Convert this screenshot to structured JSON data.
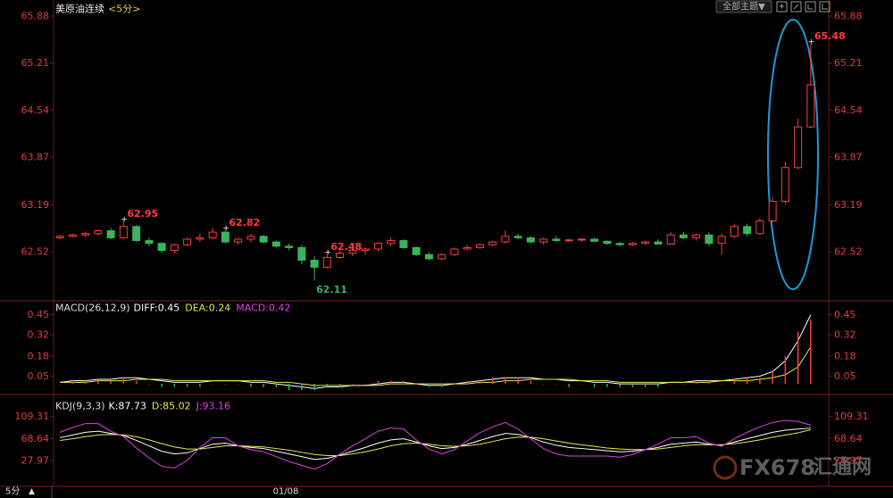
{
  "header": {
    "title": "美原油连续",
    "period": "<5分>",
    "theme_button": "全部主题▼"
  },
  "chart_data": [
    {
      "type": "candlestick",
      "open": [
        62.72,
        62.74,
        62.76,
        62.78,
        62.82,
        62.72,
        62.88,
        62.68,
        62.64,
        62.54,
        62.62,
        62.7,
        62.72,
        62.8,
        62.66,
        62.7,
        62.74,
        62.66,
        62.6,
        62.58,
        62.4,
        62.3,
        62.44,
        62.5,
        62.54,
        62.56,
        62.64,
        62.68,
        62.58,
        62.48,
        62.42,
        62.48,
        62.56,
        62.58,
        62.62,
        62.66,
        62.74,
        62.72,
        62.66,
        62.7,
        62.68,
        62.69,
        62.7,
        62.67,
        62.64,
        62.62,
        62.64,
        62.66,
        62.63,
        62.76,
        62.72,
        62.76,
        62.64,
        62.74,
        62.88,
        62.78,
        62.96,
        63.24,
        63.72,
        64.3
      ],
      "high": [
        62.76,
        62.78,
        62.8,
        62.84,
        62.86,
        62.95,
        62.9,
        62.72,
        62.66,
        62.64,
        62.72,
        62.78,
        62.86,
        62.82,
        62.72,
        62.78,
        62.76,
        62.68,
        62.64,
        62.62,
        62.46,
        62.48,
        62.54,
        62.58,
        62.58,
        62.66,
        62.72,
        62.7,
        62.6,
        62.52,
        62.5,
        62.58,
        62.62,
        62.64,
        62.68,
        62.82,
        62.78,
        62.74,
        62.72,
        62.74,
        62.7,
        62.71,
        62.72,
        62.68,
        62.66,
        62.66,
        62.68,
        62.7,
        62.8,
        62.8,
        62.78,
        62.8,
        62.78,
        62.92,
        62.92,
        63.0,
        63.3,
        63.8,
        64.42,
        65.48
      ],
      "low": [
        62.7,
        62.72,
        62.73,
        62.75,
        62.7,
        62.7,
        62.66,
        62.6,
        62.5,
        62.5,
        62.6,
        62.66,
        62.7,
        62.64,
        62.62,
        62.66,
        62.64,
        62.58,
        62.54,
        62.34,
        62.11,
        62.28,
        62.42,
        62.46,
        62.48,
        62.52,
        62.6,
        62.56,
        62.46,
        62.4,
        62.4,
        62.46,
        62.54,
        62.56,
        62.6,
        62.64,
        62.7,
        62.64,
        62.62,
        62.66,
        62.66,
        62.66,
        62.66,
        62.62,
        62.6,
        62.6,
        62.62,
        62.62,
        62.62,
        62.7,
        62.68,
        62.6,
        62.48,
        62.72,
        62.74,
        62.76,
        62.94,
        63.2,
        63.7,
        64.28
      ],
      "close": [
        62.74,
        62.76,
        62.78,
        62.82,
        62.72,
        62.88,
        62.68,
        62.64,
        62.54,
        62.62,
        62.7,
        62.72,
        62.8,
        62.66,
        62.7,
        62.74,
        62.66,
        62.6,
        62.58,
        62.4,
        62.3,
        62.44,
        62.5,
        62.54,
        62.56,
        62.64,
        62.68,
        62.58,
        62.48,
        62.42,
        62.48,
        62.56,
        62.58,
        62.62,
        62.66,
        62.74,
        62.72,
        62.66,
        62.7,
        62.68,
        62.69,
        62.7,
        62.67,
        62.64,
        62.62,
        62.64,
        62.66,
        62.63,
        62.76,
        62.72,
        62.76,
        62.64,
        62.74,
        62.88,
        62.78,
        62.96,
        63.24,
        63.72,
        64.3,
        64.9
      ],
      "up_color": "#ff3c3c",
      "down_color": "#3cb45a",
      "annotations": [
        62.95,
        62.11,
        62.82,
        62.48,
        65.48
      ],
      "ylim": [
        62.0,
        66.0
      ],
      "yticks": [
        65.88,
        65.21,
        64.54,
        63.87,
        63.19,
        62.52
      ]
    },
    {
      "type": "macd",
      "title": "MACD(26,12,9)",
      "series": [
        {
          "name": "DIFF:0.45",
          "color": "#ffffff",
          "values": [
            0.01,
            0.02,
            0.02,
            0.03,
            0.03,
            0.04,
            0.04,
            0.03,
            0.02,
            0.01,
            0.01,
            0.01,
            0.02,
            0.02,
            0.02,
            0.01,
            0.01,
            0.0,
            -0.01,
            -0.02,
            -0.03,
            -0.02,
            -0.02,
            -0.01,
            -0.01,
            0.0,
            0.01,
            0.01,
            0.0,
            -0.01,
            -0.01,
            0.0,
            0.01,
            0.02,
            0.03,
            0.04,
            0.04,
            0.04,
            0.03,
            0.03,
            0.02,
            0.02,
            0.01,
            0.01,
            0.0,
            0.0,
            0.0,
            0.0,
            0.01,
            0.01,
            0.02,
            0.02,
            0.02,
            0.03,
            0.04,
            0.05,
            0.08,
            0.15,
            0.28,
            0.45
          ]
        },
        {
          "name": "DEA:0.24",
          "color": "#e8e84a",
          "values": [
            0.01,
            0.01,
            0.01,
            0.02,
            0.02,
            0.02,
            0.03,
            0.03,
            0.03,
            0.02,
            0.02,
            0.02,
            0.02,
            0.02,
            0.02,
            0.02,
            0.02,
            0.01,
            0.01,
            0.0,
            -0.01,
            -0.01,
            -0.01,
            -0.01,
            -0.01,
            -0.01,
            0.0,
            0.0,
            0.0,
            0.0,
            0.0,
            0.0,
            0.0,
            0.01,
            0.01,
            0.02,
            0.02,
            0.03,
            0.03,
            0.03,
            0.03,
            0.02,
            0.02,
            0.02,
            0.01,
            0.01,
            0.01,
            0.01,
            0.01,
            0.01,
            0.01,
            0.01,
            0.02,
            0.02,
            0.02,
            0.03,
            0.04,
            0.06,
            0.11,
            0.24
          ]
        },
        {
          "name": "MACD:0.42",
          "color": "#e040e0",
          "style": "bar",
          "up_color": "#ff3c3c",
          "down_color": "#3cb45a",
          "values": [
            0,
            0.02,
            0.02,
            0.02,
            0.02,
            0.04,
            0.02,
            0,
            -0.02,
            -0.02,
            -0.02,
            -0.02,
            0,
            0,
            0,
            -0.02,
            -0.02,
            -0.02,
            -0.04,
            -0.04,
            -0.04,
            -0.02,
            -0.02,
            0,
            0,
            0.02,
            0.02,
            0.02,
            0,
            -0.02,
            -0.02,
            0,
            0.02,
            0.02,
            0.04,
            0.04,
            0.04,
            0.02,
            0,
            0,
            -0.02,
            0,
            -0.02,
            -0.02,
            -0.02,
            -0.02,
            -0.02,
            -0.02,
            0,
            0,
            0.02,
            0.02,
            0,
            0.02,
            0.04,
            0.04,
            0.08,
            0.18,
            0.34,
            0.42
          ]
        }
      ],
      "ylim": [
        -0.04,
        0.5
      ],
      "yticks": [
        0.45,
        0.32,
        0.18,
        0.05
      ]
    },
    {
      "type": "kdj",
      "title": "KDJ(9,3,3)",
      "series": [
        {
          "name": "K:87.73",
          "color": "#ffffff",
          "values": [
            70,
            75,
            80,
            82,
            78,
            74,
            65,
            55,
            45,
            40,
            42,
            50,
            58,
            60,
            55,
            52,
            50,
            45,
            40,
            35,
            30,
            32,
            38,
            45,
            52,
            60,
            66,
            68,
            62,
            55,
            50,
            52,
            58,
            65,
            72,
            78,
            76,
            70,
            62,
            56,
            52,
            50,
            48,
            46,
            44,
            45,
            48,
            52,
            58,
            60,
            62,
            58,
            56,
            62,
            68,
            74,
            80,
            84,
            86,
            87.73
          ]
        },
        {
          "name": "D:85.02",
          "color": "#e8e84a",
          "values": [
            65,
            68,
            72,
            75,
            76,
            75,
            72,
            66,
            59,
            53,
            49,
            49,
            52,
            55,
            55,
            54,
            53,
            50,
            47,
            43,
            39,
            37,
            37,
            40,
            44,
            49,
            55,
            59,
            60,
            58,
            55,
            54,
            55,
            58,
            63,
            68,
            71,
            71,
            68,
            64,
            60,
            57,
            54,
            51,
            49,
            48,
            48,
            49,
            52,
            55,
            57,
            57,
            57,
            59,
            62,
            66,
            71,
            75,
            79,
            85.02
          ]
        },
        {
          "name": "J:93.16",
          "color": "#e040e0",
          "values": [
            80,
            89,
            96,
            96,
            82,
            72,
            51,
            33,
            17,
            14,
            28,
            52,
            70,
            70,
            55,
            48,
            44,
            35,
            26,
            19,
            12,
            22,
            40,
            55,
            68,
            82,
            88,
            86,
            66,
            49,
            40,
            48,
            64,
            79,
            90,
            98,
            86,
            68,
            50,
            40,
            36,
            36,
            36,
            36,
            34,
            39,
            48,
            58,
            70,
            70,
            72,
            60,
            54,
            68,
            80,
            90,
            98,
            102,
            100,
            93.16
          ]
        }
      ],
      "ylim": [
        -20,
        140
      ],
      "yticks": [
        109.31,
        68.64,
        27.97
      ]
    }
  ],
  "footer": {
    "period": "5分",
    "arrow": "▲",
    "date": "01/08"
  },
  "watermark": {
    "brand": "FX678",
    "site": "汇通网"
  }
}
